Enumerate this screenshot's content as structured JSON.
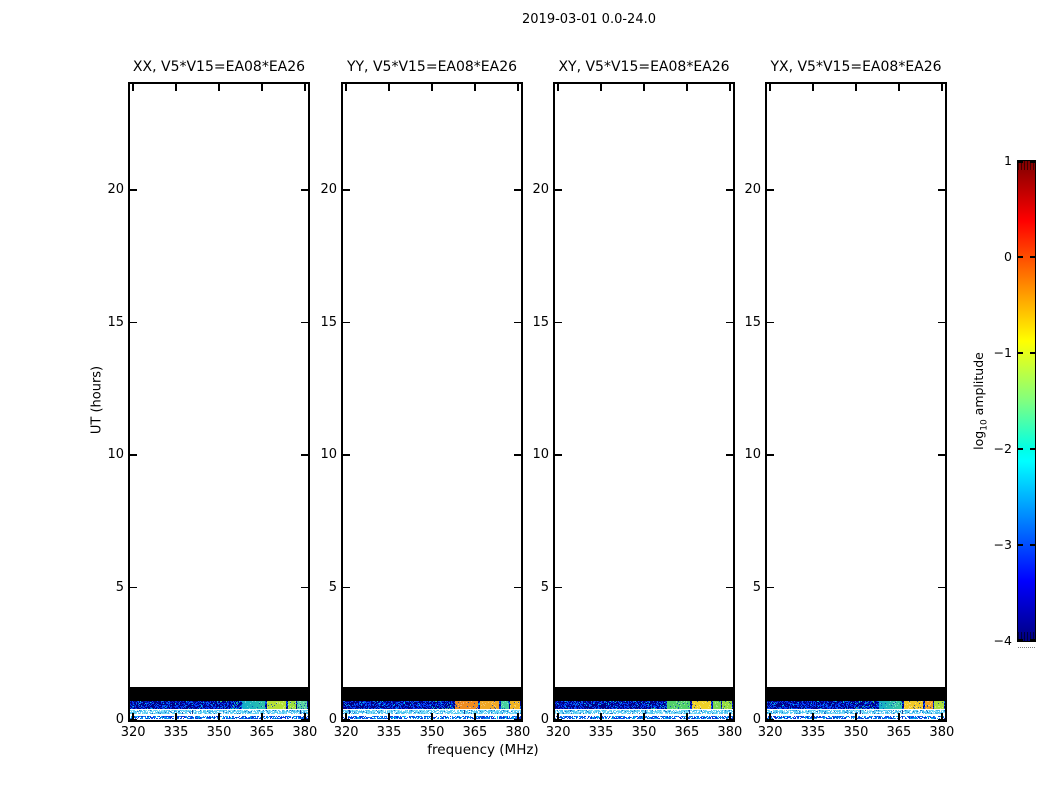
{
  "chart_data": {
    "type": "heatmap",
    "title": "2019-03-01 0.0-24.0",
    "xlabel": "frequency (MHz)",
    "ylabel": "UT (hours)",
    "xlim": [
      318.9,
      381.1
    ],
    "ylim": [
      0,
      24
    ],
    "xticks": [
      320,
      335,
      350,
      365,
      380
    ],
    "xtick_labels": [
      "320",
      "335",
      "350",
      "365",
      "380"
    ],
    "yticks": [
      0,
      5,
      10,
      15,
      20
    ],
    "ytick_labels": [
      "0",
      "5",
      "10",
      "15",
      "20"
    ],
    "grid": false,
    "panels": [
      {
        "polarization": "XX",
        "title": "XX, V5*V15=EA08*EA26"
      },
      {
        "polarization": "YY",
        "title": "YY, V5*V15=EA08*EA26"
      },
      {
        "polarization": "XY",
        "title": "XY, V5*V15=EA08*EA26"
      },
      {
        "polarization": "YX",
        "title": "YX, V5*V15=EA08*EA26"
      }
    ],
    "colorbar": {
      "label": "log10 amplitude",
      "label_parts": [
        "log",
        "10",
        " amplitude"
      ],
      "ticks": [
        1,
        0,
        -1,
        -2,
        -3,
        -4
      ],
      "tick_labels": [
        "1",
        "0",
        "−1",
        "−2",
        "−3",
        "−4"
      ],
      "vmin": -4,
      "vmax": 1,
      "colormap": "jet"
    },
    "features": {
      "flagged_band_hours": [
        0.71,
        1.24
      ],
      "noise_band_hours": [
        0.41,
        0.71
      ],
      "cyan_band_hours": [
        0.22,
        0.37
      ],
      "bottom_band_hours": [
        0.04,
        0.15
      ],
      "rfi_blocks_mhz": [
        [
          358.0,
          366.0
        ],
        [
          366.8,
          373.3
        ],
        [
          374.0,
          376.8
        ],
        [
          377.4,
          380.7
        ]
      ],
      "panel_block_colors": [
        [
          "#2ec4a6",
          "#b4e036",
          "#9ade3c",
          "#5ad2a0"
        ],
        [
          "#f08c1e",
          "#f0a824",
          "#46d0a0",
          "#f0b422"
        ],
        [
          "#52d06a",
          "#f0d228",
          "#78d852",
          "#96dc40"
        ],
        [
          "#3ecc96",
          "#f0c828",
          "#f0a01e",
          "#aade3c"
        ]
      ]
    }
  }
}
